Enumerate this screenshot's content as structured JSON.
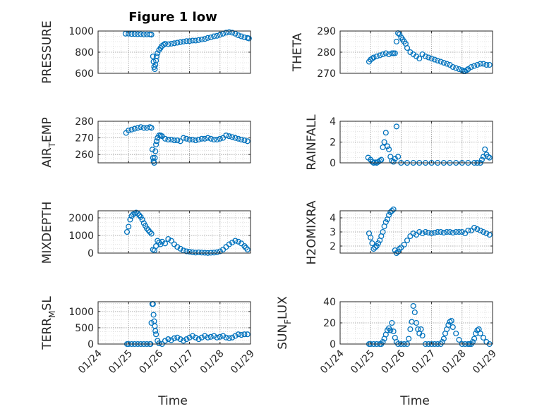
{
  "figure": {
    "title": "Figure 1 low",
    "xlabel": "Time",
    "x_ticks": [
      "01/24",
      "01/25",
      "01/26",
      "01/27",
      "01/28",
      "01/29"
    ],
    "marker_color": "#0072BD",
    "frame_color": "#262626"
  },
  "chart_data": [
    {
      "type": "scatter",
      "title": "Figure 1 low",
      "ylabel": "PRESSURE",
      "xlim": [
        0,
        5
      ],
      "ylim": [
        600,
        1000
      ],
      "yticks": [
        600,
        800,
        1000
      ],
      "x": [
        0.9,
        1.0,
        1.1,
        1.2,
        1.3,
        1.4,
        1.5,
        1.6,
        1.7,
        1.75,
        1.8,
        1.82,
        1.84,
        1.86,
        1.88,
        1.9,
        1.92,
        1.95,
        2.0,
        2.05,
        2.1,
        2.15,
        2.2,
        2.3,
        2.4,
        2.5,
        2.6,
        2.7,
        2.8,
        2.9,
        3.0,
        3.1,
        3.2,
        3.3,
        3.4,
        3.5,
        3.6,
        3.7,
        3.8,
        3.9,
        4.0,
        4.1,
        4.2,
        4.3,
        4.4,
        4.5,
        4.6,
        4.7,
        4.8,
        4.9,
        4.95
      ],
      "y": [
        975,
        975,
        972,
        972,
        970,
        970,
        968,
        968,
        968,
        966,
        760,
        710,
        660,
        640,
        680,
        720,
        760,
        790,
        820,
        840,
        860,
        870,
        880,
        875,
        880,
        885,
        890,
        895,
        900,
        905,
        905,
        910,
        910,
        915,
        920,
        925,
        935,
        940,
        950,
        955,
        965,
        975,
        985,
        990,
        985,
        975,
        960,
        950,
        940,
        935,
        930
      ]
    },
    {
      "type": "scatter",
      "ylabel": "THETA",
      "xlim": [
        0,
        5
      ],
      "ylim": [
        270,
        290
      ],
      "yticks": [
        270,
        280,
        290
      ],
      "x": [
        0.95,
        1.0,
        1.05,
        1.1,
        1.2,
        1.3,
        1.4,
        1.5,
        1.6,
        1.7,
        1.75,
        1.8,
        1.85,
        1.9,
        1.95,
        2.0,
        2.05,
        2.1,
        2.15,
        2.2,
        2.3,
        2.4,
        2.5,
        2.6,
        2.7,
        2.8,
        2.9,
        3.0,
        3.1,
        3.2,
        3.3,
        3.4,
        3.5,
        3.6,
        3.7,
        3.8,
        3.9,
        4.0,
        4.05,
        4.1,
        4.15,
        4.2,
        4.3,
        4.4,
        4.5,
        4.6,
        4.7,
        4.8,
        4.9
      ],
      "y": [
        275.5,
        276.5,
        277,
        277.5,
        278,
        278.5,
        279,
        279.5,
        279,
        279.5,
        279.5,
        279.5,
        285,
        289,
        288.5,
        287,
        286,
        285,
        284,
        282,
        280,
        279,
        278,
        277,
        279,
        278,
        277.5,
        277,
        276.5,
        276,
        275.5,
        275,
        274.5,
        274,
        273,
        272.5,
        272,
        271.5,
        271,
        271,
        271.5,
        272,
        273,
        273.5,
        274,
        274.5,
        274.5,
        274,
        274
      ]
    },
    {
      "type": "scatter",
      "ylabel": "AIR_TEMP",
      "xlim": [
        0,
        5
      ],
      "ylim": [
        255,
        280
      ],
      "yticks": [
        260,
        270,
        280
      ],
      "x": [
        0.92,
        1.0,
        1.1,
        1.2,
        1.3,
        1.4,
        1.5,
        1.6,
        1.7,
        1.75,
        1.78,
        1.8,
        1.82,
        1.84,
        1.86,
        1.88,
        1.9,
        1.92,
        1.95,
        2.0,
        2.05,
        2.1,
        2.2,
        2.3,
        2.4,
        2.5,
        2.6,
        2.7,
        2.8,
        2.9,
        3.0,
        3.1,
        3.2,
        3.3,
        3.4,
        3.5,
        3.6,
        3.7,
        3.8,
        3.9,
        4.0,
        4.1,
        4.2,
        4.3,
        4.4,
        4.5,
        4.6,
        4.7,
        4.8,
        4.9
      ],
      "y": [
        273,
        274.5,
        275,
        275.5,
        276,
        276.5,
        276,
        276,
        276.5,
        276,
        263,
        258,
        256,
        255,
        258,
        262,
        266,
        268,
        270,
        271.5,
        271.5,
        271,
        269.5,
        269,
        269,
        268.5,
        268.5,
        268,
        270,
        269.5,
        269,
        269,
        268.5,
        269,
        269.5,
        269.5,
        270,
        269.5,
        269,
        269,
        269.5,
        270,
        271.5,
        271,
        270.5,
        270,
        269.5,
        269,
        268.5,
        268
      ]
    },
    {
      "type": "scatter",
      "ylabel": "RAINFALL",
      "xlim": [
        0,
        5
      ],
      "ylim": [
        0,
        4
      ],
      "yticks": [
        0,
        2,
        4
      ],
      "x": [
        0.92,
        1.0,
        1.05,
        1.1,
        1.15,
        1.2,
        1.25,
        1.3,
        1.35,
        1.4,
        1.45,
        1.5,
        1.55,
        1.6,
        1.65,
        1.7,
        1.75,
        1.8,
        1.85,
        1.9,
        2.0,
        2.2,
        2.4,
        2.6,
        2.8,
        3.0,
        3.2,
        3.4,
        3.6,
        3.8,
        4.0,
        4.2,
        4.4,
        4.5,
        4.6,
        4.65,
        4.7,
        4.75,
        4.8,
        4.85,
        4.9
      ],
      "y": [
        0.5,
        0.3,
        0.1,
        0,
        0.05,
        0,
        0.1,
        0.2,
        0.3,
        1.5,
        2.0,
        2.9,
        1.6,
        1.3,
        0.6,
        0.2,
        0.1,
        0.4,
        3.5,
        0.6,
        0,
        0,
        0,
        0,
        0,
        0,
        0,
        0,
        0,
        0,
        0,
        0,
        0,
        0,
        0,
        0.3,
        0.6,
        1.3,
        0.8,
        0.6,
        0.5
      ]
    },
    {
      "type": "scatter",
      "ylabel": "MIXDEPTH",
      "xlim": [
        0,
        5
      ],
      "ylim": [
        0,
        2400
      ],
      "yticks": [
        0,
        1000,
        2000
      ],
      "x": [
        0.95,
        1.0,
        1.05,
        1.1,
        1.15,
        1.2,
        1.25,
        1.3,
        1.35,
        1.4,
        1.45,
        1.5,
        1.55,
        1.6,
        1.65,
        1.7,
        1.75,
        1.8,
        1.85,
        1.9,
        1.95,
        2.0,
        2.05,
        2.1,
        2.2,
        2.3,
        2.4,
        2.5,
        2.6,
        2.7,
        2.8,
        2.9,
        3.0,
        3.1,
        3.2,
        3.3,
        3.4,
        3.5,
        3.6,
        3.7,
        3.8,
        3.9,
        4.0,
        4.1,
        4.2,
        4.3,
        4.4,
        4.5,
        4.6,
        4.7,
        4.8,
        4.85,
        4.9
      ],
      "y": [
        1200,
        1500,
        1900,
        2100,
        2200,
        2250,
        2300,
        2250,
        2150,
        2050,
        1900,
        1700,
        1550,
        1400,
        1300,
        1200,
        1100,
        200,
        150,
        400,
        700,
        600,
        500,
        650,
        550,
        800,
        700,
        500,
        350,
        250,
        150,
        100,
        80,
        50,
        30,
        40,
        30,
        20,
        10,
        20,
        30,
        50,
        100,
        200,
        350,
        500,
        600,
        700,
        650,
        550,
        400,
        300,
        200
      ]
    },
    {
      "type": "scatter",
      "ylabel": "H2OMIXRA",
      "xlim": [
        0,
        5
      ],
      "ylim": [
        1.5,
        4.5
      ],
      "yticks": [
        2,
        3,
        4
      ],
      "x": [
        0.95,
        1.0,
        1.05,
        1.1,
        1.15,
        1.2,
        1.25,
        1.3,
        1.35,
        1.4,
        1.45,
        1.5,
        1.55,
        1.6,
        1.65,
        1.7,
        1.75,
        1.8,
        1.85,
        1.9,
        1.95,
        2.0,
        2.1,
        2.2,
        2.3,
        2.4,
        2.5,
        2.6,
        2.7,
        2.8,
        2.9,
        3.0,
        3.1,
        3.2,
        3.3,
        3.4,
        3.5,
        3.6,
        3.7,
        3.8,
        3.9,
        4.0,
        4.1,
        4.2,
        4.3,
        4.4,
        4.5,
        4.6,
        4.7,
        4.8,
        4.9
      ],
      "y": [
        2.9,
        2.6,
        2.2,
        1.8,
        1.9,
        2.0,
        2.2,
        2.4,
        2.7,
        3.0,
        3.4,
        3.7,
        3.9,
        4.2,
        4.4,
        4.5,
        4.6,
        1.7,
        1.5,
        1.6,
        1.8,
        1.9,
        2.1,
        2.4,
        2.7,
        2.9,
        2.8,
        3.0,
        2.9,
        3.0,
        2.95,
        2.9,
        2.95,
        3.0,
        3.0,
        2.95,
        3.0,
        3.0,
        2.95,
        3.0,
        3.0,
        3.0,
        2.9,
        3.1,
        3.1,
        3.3,
        3.2,
        3.1,
        3.0,
        2.9,
        2.8
      ]
    },
    {
      "type": "scatter",
      "ylabel": "TERR_MSL",
      "xlim": [
        0,
        5
      ],
      "ylim": [
        0,
        1300
      ],
      "yticks": [
        0,
        500,
        1000
      ],
      "x": [
        0.95,
        1.0,
        1.1,
        1.2,
        1.3,
        1.4,
        1.5,
        1.6,
        1.7,
        1.72,
        1.75,
        1.78,
        1.8,
        1.82,
        1.84,
        1.86,
        1.88,
        1.9,
        1.95,
        2.0,
        2.1,
        2.2,
        2.3,
        2.4,
        2.5,
        2.6,
        2.7,
        2.8,
        2.9,
        3.0,
        3.1,
        3.2,
        3.3,
        3.4,
        3.5,
        3.6,
        3.7,
        3.8,
        3.9,
        4.0,
        4.1,
        4.2,
        4.3,
        4.4,
        4.5,
        4.6,
        4.7,
        4.8,
        4.9
      ],
      "y": [
        0,
        0,
        0,
        0,
        0,
        0,
        0,
        0,
        0,
        0,
        650,
        1230,
        1230,
        900,
        700,
        550,
        400,
        300,
        100,
        20,
        0,
        100,
        150,
        120,
        180,
        200,
        150,
        100,
        150,
        200,
        250,
        200,
        150,
        200,
        250,
        200,
        220,
        250,
        200,
        220,
        250,
        200,
        180,
        200,
        250,
        300,
        280,
        300,
        300
      ]
    },
    {
      "type": "scatter",
      "ylabel": "SUN_FLUX",
      "xlim": [
        0,
        5
      ],
      "ylim": [
        0,
        40
      ],
      "yticks": [
        0,
        20,
        40
      ],
      "x": [
        0.95,
        1.0,
        1.1,
        1.2,
        1.3,
        1.35,
        1.4,
        1.45,
        1.5,
        1.55,
        1.6,
        1.65,
        1.7,
        1.75,
        1.8,
        1.85,
        1.9,
        2.0,
        2.1,
        2.2,
        2.25,
        2.3,
        2.35,
        2.4,
        2.45,
        2.5,
        2.55,
        2.6,
        2.65,
        2.7,
        2.8,
        2.9,
        3.0,
        3.1,
        3.2,
        3.3,
        3.35,
        3.4,
        3.45,
        3.5,
        3.55,
        3.6,
        3.65,
        3.7,
        3.8,
        3.9,
        4.0,
        4.1,
        4.2,
        4.25,
        4.3,
        4.35,
        4.4,
        4.45,
        4.5,
        4.55,
        4.6,
        4.7,
        4.8,
        4.9
      ],
      "y": [
        0,
        0,
        0,
        0,
        0,
        0,
        2,
        5,
        9,
        13,
        15,
        13,
        20,
        12,
        6,
        2,
        0,
        0,
        0,
        0,
        5,
        14,
        21,
        36,
        30,
        20,
        14,
        10,
        14,
        8,
        0,
        0,
        0,
        0,
        0,
        0,
        2,
        5,
        10,
        14,
        18,
        21,
        22,
        16,
        10,
        4,
        0,
        0,
        0,
        0,
        0,
        2,
        5,
        10,
        13,
        14,
        10,
        6,
        2,
        0
      ]
    }
  ]
}
